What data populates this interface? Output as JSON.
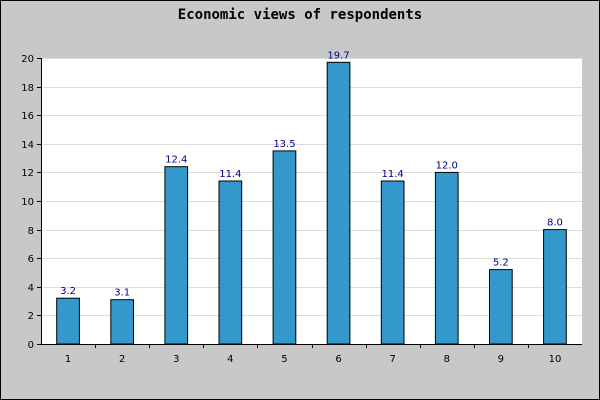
{
  "chart_data": {
    "type": "bar",
    "title": "Economic views of respondents",
    "categories": [
      "1",
      "2",
      "3",
      "4",
      "5",
      "6",
      "7",
      "8",
      "9",
      "10"
    ],
    "values": [
      3.2,
      3.1,
      12.4,
      11.4,
      13.5,
      19.7,
      11.4,
      12.0,
      5.2,
      8.0
    ],
    "data_labels": [
      "3.2",
      "3.1",
      "12.4",
      "11.4",
      "13.5",
      "19.7",
      "11.4",
      "12.0",
      "5.2",
      "8.0"
    ],
    "y_ticks": [
      "0",
      "2",
      "4",
      "6",
      "8",
      "10",
      "12",
      "14",
      "16",
      "18",
      "20"
    ],
    "xlabel": "",
    "ylabel": "",
    "ylim": [
      0,
      20
    ],
    "grid": true,
    "colors": {
      "bar": "#3399cc",
      "label": "#000080",
      "background": "#c8c8c8",
      "plot": "#ffffff"
    }
  }
}
